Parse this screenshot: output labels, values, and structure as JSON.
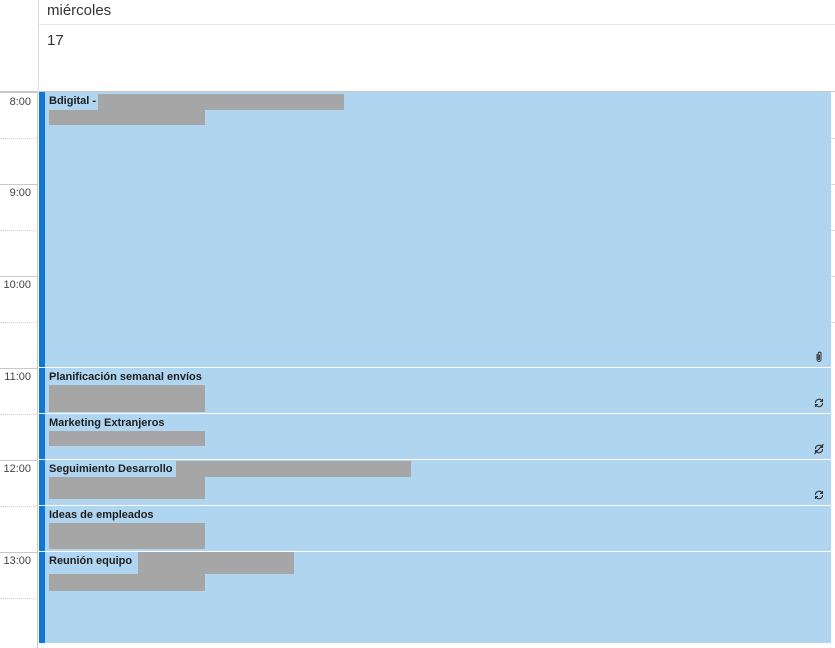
{
  "header": {
    "day_name": "miércoles",
    "day_number": "17"
  },
  "hours": [
    "8:00",
    "9:00",
    "10:00",
    "11:00",
    "12:00",
    "13:00"
  ],
  "events": [
    {
      "title": "Bdigital -",
      "icon": "paperclip-icon"
    },
    {
      "title": "Planificación semanal envíos",
      "icon": "recurring-icon"
    },
    {
      "title": "Marketing Extranjeros",
      "icon": "recurring-exception-icon"
    },
    {
      "title": "Seguimiento Desarrollo",
      "icon": "recurring-icon"
    },
    {
      "title": "Ideas de empleados",
      "icon": ""
    },
    {
      "title": "Reunión equipo",
      "icon": ""
    }
  ],
  "colors": {
    "event_fill": "#b0d5f1",
    "event_bar": "#0f78d4",
    "redaction": "#a6a6a6"
  }
}
